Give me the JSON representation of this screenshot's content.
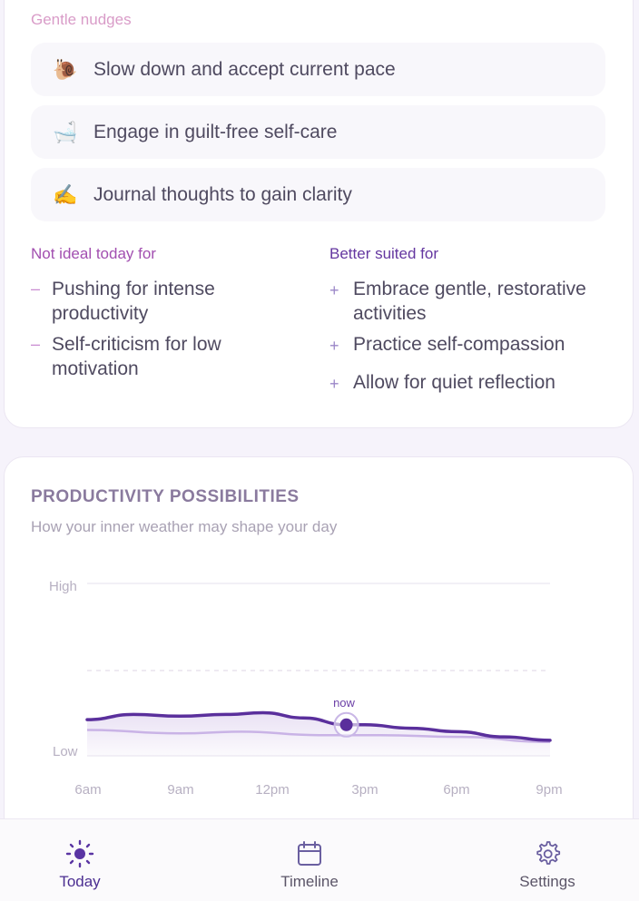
{
  "nudges": {
    "title": "Gentle nudges",
    "items": [
      {
        "emoji": "🐌",
        "text": "Slow down and accept current pace"
      },
      {
        "emoji": "🛁",
        "text": "Engage in guilt-free self-care"
      },
      {
        "emoji": "✍️",
        "text": "Journal thoughts to gain clarity"
      }
    ]
  },
  "not_ideal": {
    "title": "Not ideal today for",
    "marker": "–",
    "items": [
      "Pushing for intense productivity",
      "Self-criticism for low motivation"
    ]
  },
  "better": {
    "title": "Better suited for",
    "marker": "+",
    "items": [
      "Embrace gentle, restorative activities",
      "Practice self-compassion",
      "Allow for quiet reflection"
    ]
  },
  "productivity": {
    "title": "PRODUCTIVITY POSSIBILITIES",
    "subtitle": "How your inner weather may shape your day",
    "high_label": "High",
    "low_label": "Low",
    "now_label": "now"
  },
  "chart_data": {
    "type": "area",
    "x_ticks": [
      "6am",
      "9am",
      "12pm",
      "3pm",
      "6pm",
      "9pm"
    ],
    "ylabels": [
      "Low",
      "High"
    ],
    "ylim": [
      0,
      1
    ],
    "series": [
      {
        "values": [
          {
            "x": 6.0,
            "y": 0.21
          },
          {
            "x": 7.5,
            "y": 0.24
          },
          {
            "x": 9.0,
            "y": 0.23
          },
          {
            "x": 10.5,
            "y": 0.24
          },
          {
            "x": 11.7,
            "y": 0.25
          },
          {
            "x": 13.0,
            "y": 0.22
          },
          {
            "x": 14.4,
            "y": 0.18
          },
          {
            "x": 15.0,
            "y": 0.18
          },
          {
            "x": 16.5,
            "y": 0.16
          },
          {
            "x": 18.0,
            "y": 0.14
          },
          {
            "x": 19.5,
            "y": 0.11
          },
          {
            "x": 21.0,
            "y": 0.09
          }
        ]
      },
      {
        "values": [
          {
            "x": 6.0,
            "y": 0.15
          },
          {
            "x": 9.0,
            "y": 0.13
          },
          {
            "x": 11.0,
            "y": 0.14
          },
          {
            "x": 13.5,
            "y": 0.12
          },
          {
            "x": 15.5,
            "y": 0.12
          },
          {
            "x": 18.0,
            "y": 0.11
          },
          {
            "x": 21.0,
            "y": 0.08
          }
        ]
      }
    ],
    "now_x": 14.4,
    "colors": {
      "primary": "#5a2f9c",
      "secondary": "#c9b3e6",
      "fill": "#e7def3"
    }
  },
  "nav": {
    "today": "Today",
    "timeline": "Timeline",
    "settings": "Settings",
    "active": "today"
  }
}
